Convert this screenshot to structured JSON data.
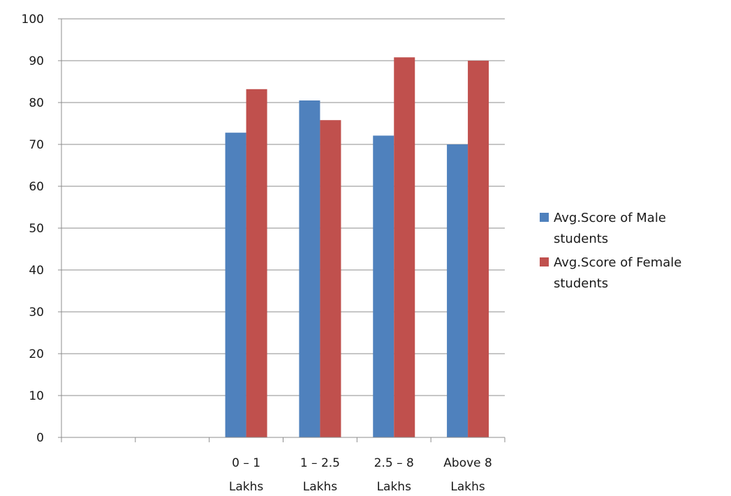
{
  "chart_data": {
    "type": "bar",
    "title": "",
    "xlabel": "",
    "ylabel": "",
    "categories": [
      [
        "",
        ""
      ],
      [
        "",
        ""
      ],
      [
        "0 – 1",
        "Lakhs"
      ],
      [
        "1 – 2.5",
        "Lakhs"
      ],
      [
        "2.5 – 8",
        "Lakhs"
      ],
      [
        "Above 8",
        "Lakhs"
      ]
    ],
    "series": [
      {
        "name_lines": [
          "Avg.Score of Male",
          "students"
        ],
        "color": "#4F81BD",
        "values": [
          null,
          null,
          72.8,
          80.5,
          72.1,
          70.0
        ]
      },
      {
        "name_lines": [
          "Avg.Score of Female",
          "students"
        ],
        "color": "#C0504D",
        "values": [
          null,
          null,
          83.2,
          75.8,
          90.8,
          90.0
        ]
      }
    ],
    "ylim": [
      0,
      100
    ],
    "yticks": [
      0,
      10,
      20,
      30,
      40,
      50,
      60,
      70,
      80,
      90,
      100
    ],
    "grid": true,
    "grid_color": "#8c8c8c",
    "legend_position": "right"
  }
}
